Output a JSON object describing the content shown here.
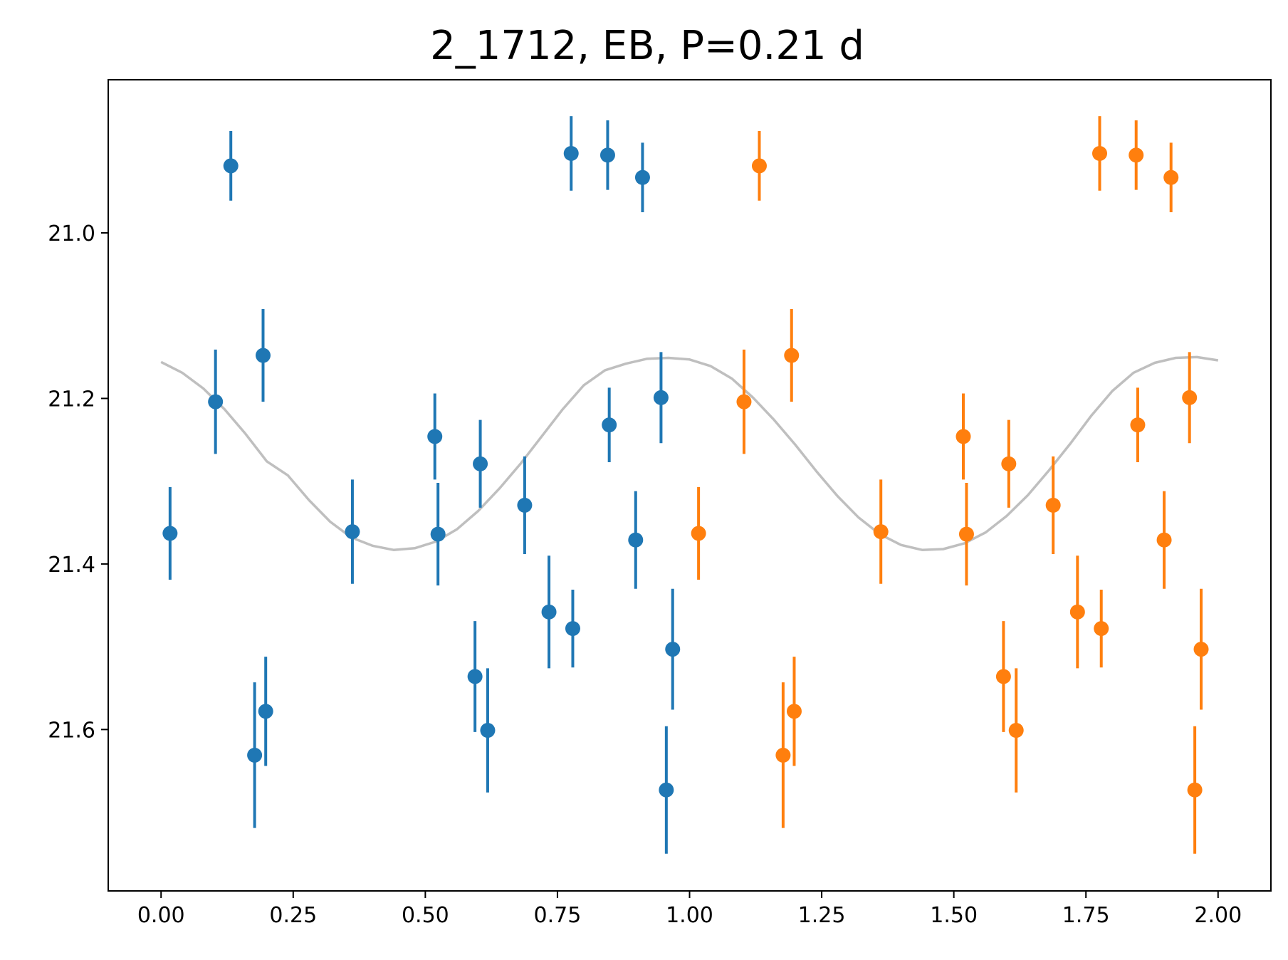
{
  "chart_data": {
    "type": "scatter",
    "title": "2_1712, EB, P=0.21 d",
    "xlabel": "",
    "ylabel": "",
    "xlim": [
      -0.1,
      2.1
    ],
    "ylim": [
      21.795,
      20.815
    ],
    "y_inverted": true,
    "grid": false,
    "legend": "none",
    "x_ticks": [
      0.0,
      0.25,
      0.5,
      0.75,
      1.0,
      1.25,
      1.5,
      1.75,
      2.0
    ],
    "x_tick_labels": [
      "0.00",
      "0.25",
      "0.50",
      "0.75",
      "1.00",
      "1.25",
      "1.50",
      "1.75",
      "2.00"
    ],
    "y_ticks": [
      21.0,
      21.2,
      21.4,
      21.6
    ],
    "y_tick_labels": [
      "21.0",
      "21.2",
      "21.4",
      "21.6"
    ],
    "series": [
      {
        "color": "#1f77b4",
        "kind": "errorbar",
        "x": [
          0.017,
          0.103,
          0.132,
          0.177,
          0.193,
          0.198,
          0.362,
          0.518,
          0.524,
          0.594,
          0.604,
          0.618,
          0.688,
          0.734,
          0.776,
          0.779,
          0.845,
          0.848,
          0.898,
          0.911,
          0.946,
          0.956,
          0.968
        ],
        "y": [
          21.363,
          21.204,
          20.919,
          21.631,
          21.148,
          21.578,
          21.361,
          21.246,
          21.364,
          21.536,
          21.279,
          21.601,
          21.329,
          21.458,
          20.904,
          21.478,
          20.906,
          21.232,
          21.371,
          20.933,
          21.199,
          21.673,
          21.503
        ],
        "yerr": [
          0.056,
          0.063,
          0.042,
          0.088,
          0.056,
          0.066,
          0.063,
          0.052,
          0.062,
          0.067,
          0.053,
          0.075,
          0.059,
          0.068,
          0.045,
          0.047,
          0.042,
          0.045,
          0.059,
          0.042,
          0.055,
          0.077,
          0.073
        ]
      },
      {
        "color": "#ff7f0e",
        "kind": "errorbar",
        "x": [
          1.017,
          1.103,
          1.132,
          1.177,
          1.193,
          1.198,
          1.362,
          1.518,
          1.524,
          1.594,
          1.604,
          1.618,
          1.688,
          1.734,
          1.776,
          1.779,
          1.845,
          1.848,
          1.898,
          1.911,
          1.946,
          1.956,
          1.968
        ],
        "y": [
          21.363,
          21.204,
          20.919,
          21.631,
          21.148,
          21.578,
          21.361,
          21.246,
          21.364,
          21.536,
          21.279,
          21.601,
          21.329,
          21.458,
          20.904,
          21.478,
          20.906,
          21.232,
          21.371,
          20.933,
          21.199,
          21.673,
          21.503
        ],
        "yerr": [
          0.056,
          0.063,
          0.042,
          0.088,
          0.056,
          0.066,
          0.063,
          0.052,
          0.062,
          0.067,
          0.053,
          0.075,
          0.059,
          0.068,
          0.045,
          0.047,
          0.042,
          0.045,
          0.059,
          0.042,
          0.055,
          0.077,
          0.073
        ]
      },
      {
        "color": "#bfbfbf",
        "kind": "line",
        "x": [
          0.0,
          0.04,
          0.08,
          0.12,
          0.16,
          0.2,
          0.24,
          0.28,
          0.32,
          0.36,
          0.4,
          0.44,
          0.48,
          0.52,
          0.56,
          0.6,
          0.64,
          0.68,
          0.72,
          0.76,
          0.8,
          0.84,
          0.88,
          0.92,
          0.96,
          1.0,
          1.04,
          1.08,
          1.12,
          1.16,
          1.2,
          1.24,
          1.28,
          1.32,
          1.36,
          1.4,
          1.44,
          1.48,
          1.52,
          1.56,
          1.6,
          1.64,
          1.68,
          1.72,
          1.76,
          1.8,
          1.84,
          1.88,
          1.92,
          1.96,
          2.0
        ],
        "y": [
          21.156,
          21.169,
          21.188,
          21.213,
          21.243,
          21.276,
          21.293,
          21.323,
          21.349,
          21.368,
          21.378,
          21.383,
          21.381,
          21.373,
          21.358,
          21.336,
          21.309,
          21.279,
          21.246,
          21.213,
          21.184,
          21.166,
          21.158,
          21.152,
          21.151,
          21.153,
          21.161,
          21.176,
          21.199,
          21.226,
          21.256,
          21.288,
          21.318,
          21.344,
          21.364,
          21.377,
          21.383,
          21.382,
          21.375,
          21.362,
          21.342,
          21.317,
          21.287,
          21.255,
          21.221,
          21.191,
          21.169,
          21.157,
          21.151,
          21.15,
          21.154
        ]
      }
    ]
  }
}
